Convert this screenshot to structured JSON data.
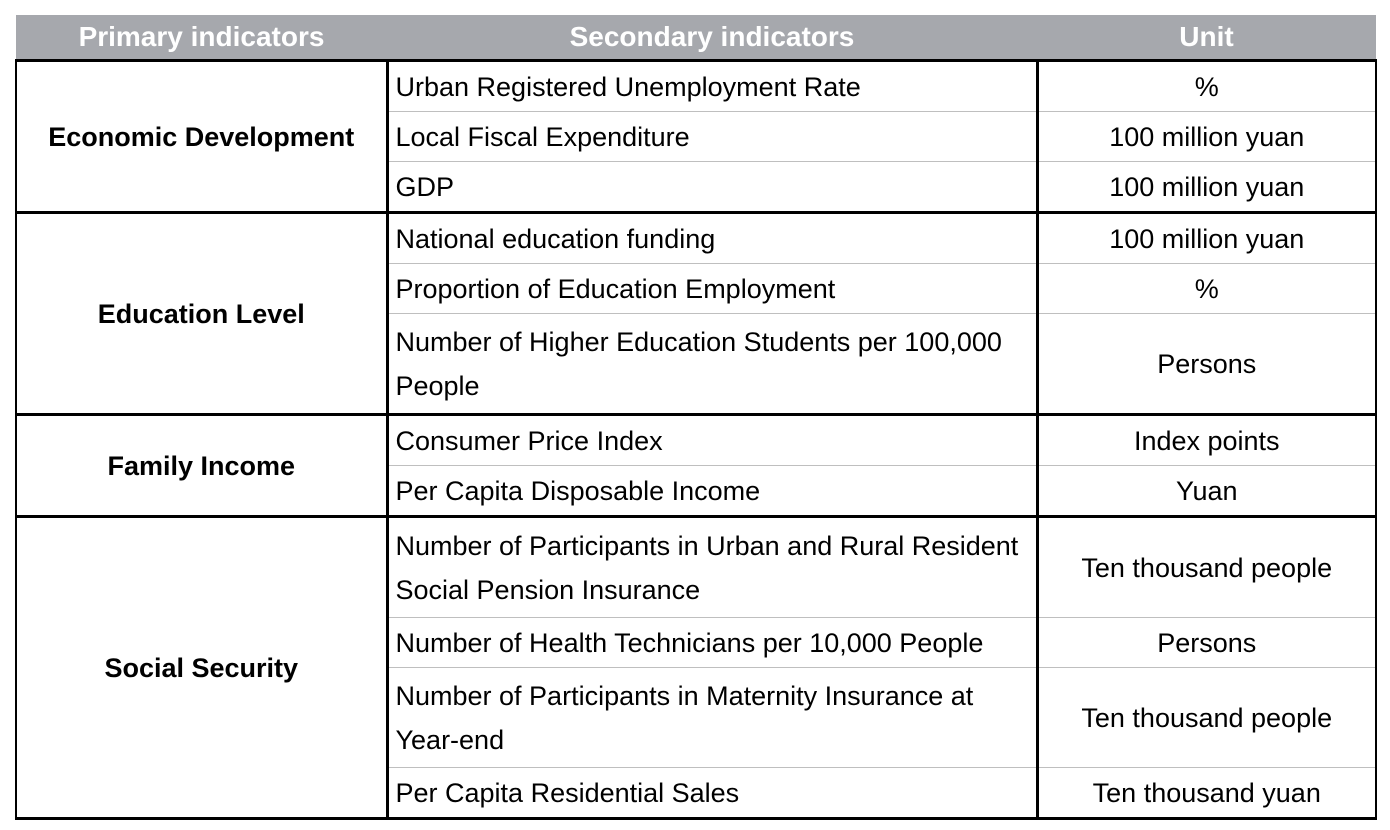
{
  "header": {
    "primary": "Primary indicators",
    "secondary": "Secondary indicators",
    "unit": "Unit"
  },
  "groups": [
    {
      "primary": "Economic Development",
      "rows": [
        {
          "secondary": "Urban Registered Unemployment Rate",
          "unit": "%"
        },
        {
          "secondary": "Local Fiscal Expenditure",
          "unit": "100 million yuan"
        },
        {
          "secondary": "GDP",
          "unit": "100 million yuan"
        }
      ]
    },
    {
      "primary": "Education Level",
      "rows": [
        {
          "secondary": "National education funding",
          "unit": "100 million yuan"
        },
        {
          "secondary": "Proportion of Education Employment",
          "unit": "%"
        },
        {
          "secondary": "Number of Higher Education Students per 100,000 People",
          "unit": "Persons"
        }
      ]
    },
    {
      "primary": "Family Income",
      "rows": [
        {
          "secondary": "Consumer Price Index",
          "unit": "Index points"
        },
        {
          "secondary": "Per Capita Disposable Income",
          "unit": "Yuan"
        }
      ]
    },
    {
      "primary": "Social Security",
      "rows": [
        {
          "secondary": "Number of Participants in Urban and Rural Resident Social Pension Insurance",
          "unit": "Ten thousand people"
        },
        {
          "secondary": "Number of Health Technicians per 10,000 People",
          "unit": "Persons"
        },
        {
          "secondary": "Number of Participants in Maternity Insurance at Year-end",
          "unit": "Ten thousand people"
        },
        {
          "secondary": "Per Capita Residential Sales",
          "unit": "Ten thousand yuan"
        }
      ]
    }
  ]
}
